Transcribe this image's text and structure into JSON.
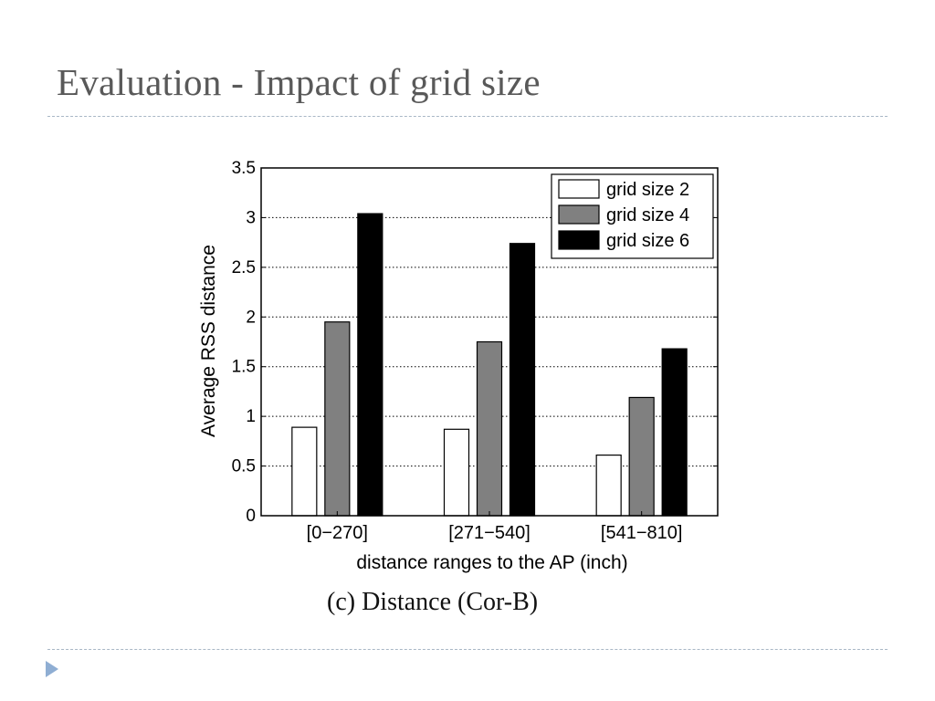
{
  "slide": {
    "title": "Evaluation - Impact of grid size"
  },
  "figure": {
    "caption": "(c) Distance (Cor-B)"
  },
  "colors": {
    "title": "#595959",
    "divider": "#a9b7c6",
    "bullet": "#8faed3"
  },
  "chart_data": {
    "type": "bar",
    "title": "",
    "xlabel": "distance ranges to the AP (inch)",
    "ylabel": "Average RSS distance",
    "categories": [
      "[0−270]",
      "[271−540]",
      "[541−810]"
    ],
    "series": [
      {
        "name": "grid size 2",
        "color": "#ffffff",
        "values": [
          0.89,
          0.87,
          0.61
        ]
      },
      {
        "name": "grid size 4",
        "color": "#808080",
        "values": [
          1.95,
          1.75,
          1.19
        ]
      },
      {
        "name": "grid size 6",
        "color": "#000000",
        "values": [
          3.04,
          2.74,
          1.68
        ]
      }
    ],
    "ylim": [
      0,
      3.5
    ],
    "yticks": [
      "0",
      "0.5",
      "1",
      "1.5",
      "2",
      "2.5",
      "3",
      "3.5"
    ],
    "grid": true,
    "legend_position": "top-right"
  }
}
